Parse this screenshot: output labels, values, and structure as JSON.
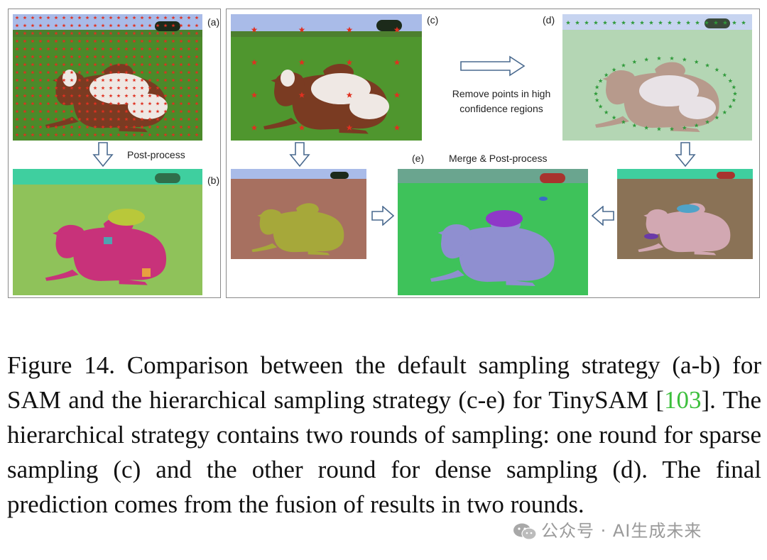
{
  "figure": {
    "panel_labels": {
      "a": "(a)",
      "b": "(b)",
      "c": "(c)",
      "d": "(d)",
      "e": "(e)"
    },
    "annotations": {
      "post_process": "Post-process",
      "remove_points_line1": "Remove points in high",
      "remove_points_line2": "confidence regions",
      "merge_post_process": "Merge & Post-process"
    },
    "colors": {
      "star_red": "#e03020",
      "star_green": "#2f9a3a",
      "grass": "#4f8f2a",
      "sky": "#9fb6e6",
      "ref_green": "#3cbf3c"
    }
  },
  "caption": {
    "prefix": "Figure 14.  Comparison between the default sampling strategy (a-b) for SAM and the hierarchical sampling strategy (c-e) for TinySAM [",
    "ref": "103",
    "suffix": "]. The hierarchical strategy contains two rounds of sampling: one round for sparse sampling (c) and the other round for dense sampling (d). The final prediction comes from the fusion of results in two rounds."
  },
  "watermark": {
    "text": "公众号 · AI生成未来",
    "icon": "wechat-icon"
  }
}
